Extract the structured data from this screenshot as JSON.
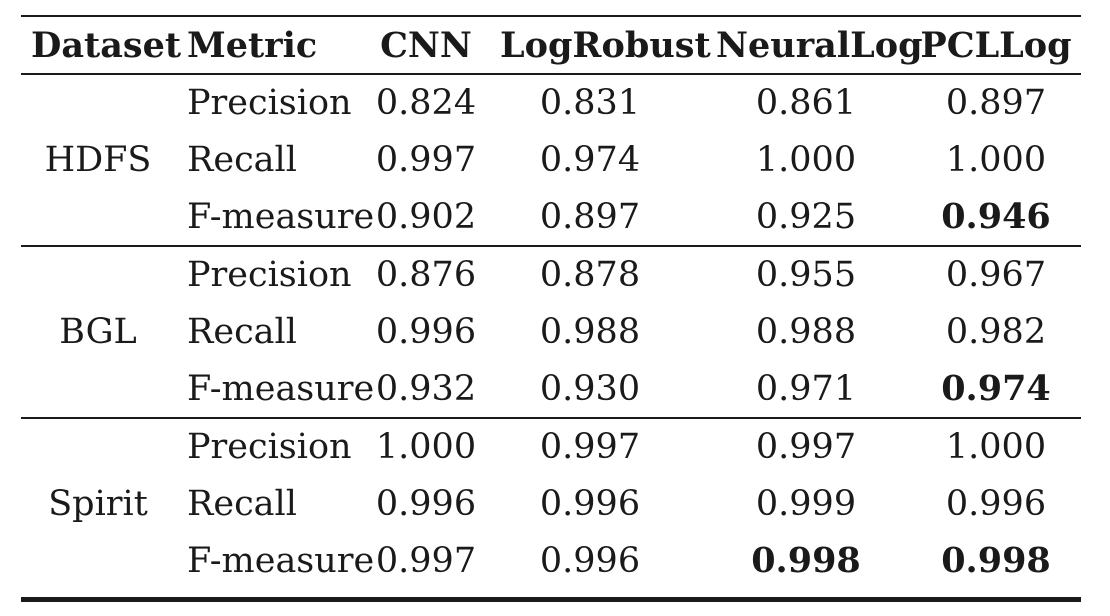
{
  "headers": [
    "Dataset",
    "Metric",
    "CNN",
    "LogRobust",
    "NeuralLog",
    "PCLLog"
  ],
  "groups": [
    {
      "dataset": "HDFS",
      "rows": [
        {
          "metric": "Precision",
          "values": [
            "0.824",
            "0.831",
            "0.861",
            "0.897"
          ],
          "bold": [
            false,
            false,
            false,
            false
          ]
        },
        {
          "metric": "Recall",
          "values": [
            "0.997",
            "0.974",
            "1.000",
            "1.000"
          ],
          "bold": [
            false,
            false,
            false,
            false
          ]
        },
        {
          "metric": "F-measure",
          "values": [
            "0.902",
            "0.897",
            "0.925",
            "0.946"
          ],
          "bold": [
            false,
            false,
            false,
            true
          ]
        }
      ]
    },
    {
      "dataset": "BGL",
      "rows": [
        {
          "metric": "Precision",
          "values": [
            "0.876",
            "0.878",
            "0.955",
            "0.967"
          ],
          "bold": [
            false,
            false,
            false,
            false
          ]
        },
        {
          "metric": "Recall",
          "values": [
            "0.996",
            "0.988",
            "0.988",
            "0.982"
          ],
          "bold": [
            false,
            false,
            false,
            false
          ]
        },
        {
          "metric": "F-measure",
          "values": [
            "0.932",
            "0.930",
            "0.971",
            "0.974"
          ],
          "bold": [
            false,
            false,
            false,
            true
          ]
        }
      ]
    },
    {
      "dataset": "Spirit",
      "rows": [
        {
          "metric": "Precision",
          "values": [
            "1.000",
            "0.997",
            "0.997",
            "1.000"
          ],
          "bold": [
            false,
            false,
            false,
            false
          ]
        },
        {
          "metric": "Recall",
          "values": [
            "0.996",
            "0.996",
            "0.999",
            "0.996"
          ],
          "bold": [
            false,
            false,
            false,
            false
          ]
        },
        {
          "metric": "F-measure",
          "values": [
            "0.997",
            "0.996",
            "0.998",
            "0.998"
          ],
          "bold": [
            false,
            false,
            true,
            true
          ]
        }
      ]
    }
  ]
}
